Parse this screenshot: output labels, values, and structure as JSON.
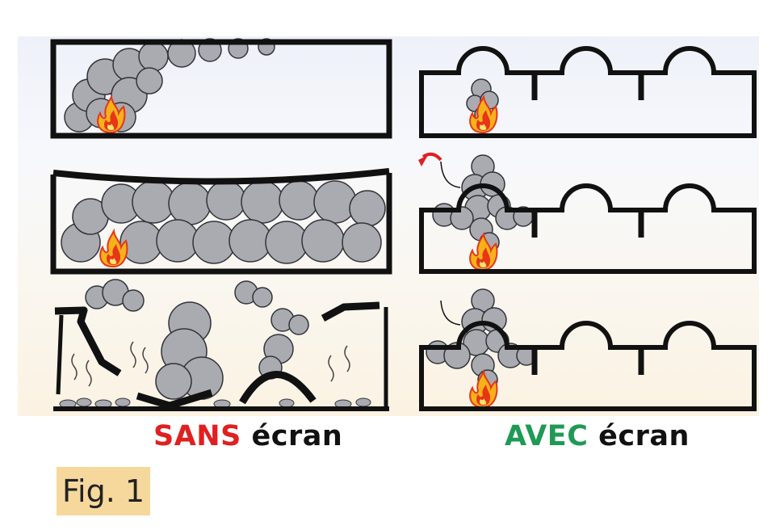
{
  "captions": {
    "left_keyword": "SANS",
    "left_word": "écran",
    "right_keyword": "AVEC",
    "right_word": "écran"
  },
  "figure_label": "Fig. 1",
  "colors": {
    "left_keyword": "#e02020",
    "right_keyword": "#1f9a55",
    "smoke": "#a9abb0",
    "fire_outer": "#f4a516",
    "fire_inner": "#e8351a",
    "label_highlight": "#f7d89c"
  }
}
